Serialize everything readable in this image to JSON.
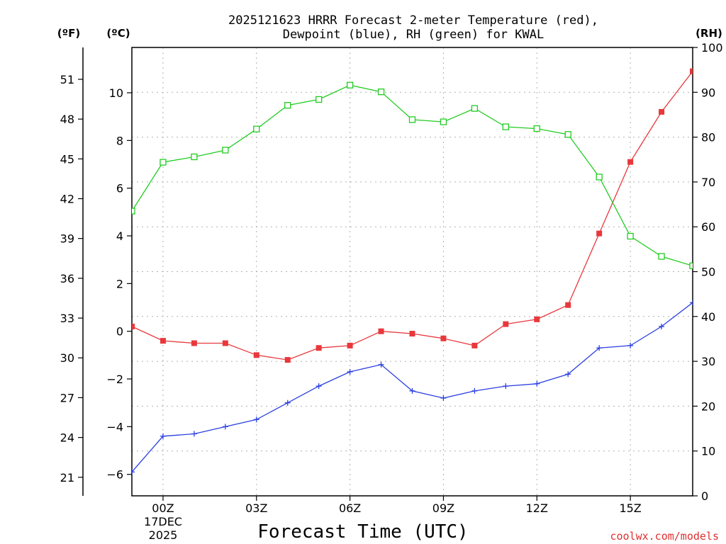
{
  "chart_data": {
    "type": "line",
    "title_line1": "2025121623 HRRR Forecast 2-meter Temperature (red),",
    "title_line2": "Dewpoint (blue), RH (green) for KWAL",
    "xlabel": "Forecast Time (UTC)",
    "ylabel_left_f": "(ºF)",
    "ylabel_left_c": "(ºC)",
    "ylabel_right": "(RH)",
    "watermark": "coolwx.com/models",
    "date_label_day": "17DEC",
    "date_label_year": "2025",
    "x_range_hours": [
      -1,
      17
    ],
    "celsius_range": [
      -6.9,
      11.9
    ],
    "fahrenheit_range": [
      19.6,
      53.4
    ],
    "rh_range": [
      0,
      100
    ],
    "x_hours": [
      -1,
      0,
      1,
      2,
      3,
      4,
      5,
      6,
      7,
      8,
      9,
      10,
      11,
      12,
      13,
      14,
      15,
      16,
      17
    ],
    "x_ticks": [
      {
        "hour": 0,
        "label": "00Z"
      },
      {
        "hour": 3,
        "label": "03Z"
      },
      {
        "hour": 6,
        "label": "06Z"
      },
      {
        "hour": 9,
        "label": "09Z"
      },
      {
        "hour": 12,
        "label": "12Z"
      },
      {
        "hour": 15,
        "label": "15Z"
      }
    ],
    "celsius_ticks": [
      -6,
      -4,
      -2,
      0,
      2,
      4,
      6,
      8,
      10
    ],
    "celsius_tick_labels": [
      "−6",
      "−4",
      "−2",
      "0",
      "2",
      "4",
      "6",
      "8",
      "10"
    ],
    "fahrenheit_ticks": [
      21,
      24,
      27,
      30,
      33,
      36,
      39,
      42,
      45,
      48,
      51
    ],
    "fahrenheit_tick_labels": [
      "21",
      "24",
      "27",
      "30",
      "33",
      "36",
      "39",
      "42",
      "45",
      "48",
      "51"
    ],
    "rh_ticks": [
      0,
      10,
      20,
      30,
      40,
      50,
      60,
      70,
      80,
      90,
      100
    ],
    "rh_tick_labels": [
      "0",
      "10",
      "20",
      "30",
      "40",
      "50",
      "60",
      "70",
      "80",
      "90",
      "100"
    ],
    "series": [
      {
        "name": "Temperature",
        "axis": "celsius",
        "color": "#e8383c",
        "marker": "filled-square",
        "values": [
          0.2,
          -0.4,
          -0.5,
          -0.5,
          -1.0,
          -1.2,
          -0.7,
          -0.6,
          0.0,
          -0.1,
          -0.3,
          -0.6,
          0.3,
          0.5,
          1.1,
          4.1,
          7.1,
          9.2,
          10.9
        ]
      },
      {
        "name": "Dewpoint",
        "axis": "celsius",
        "color": "#2b3fe0",
        "marker": "plus",
        "values": [
          -5.9,
          -4.4,
          -4.3,
          -4.0,
          -3.7,
          -3.0,
          -2.3,
          -1.7,
          -1.4,
          -2.5,
          -2.8,
          -2.5,
          -2.3,
          -2.2,
          -1.8,
          -0.7,
          -0.6,
          0.2,
          1.2
        ]
      },
      {
        "name": "RH",
        "axis": "rh",
        "color": "#22cc22",
        "marker": "open-square",
        "values": [
          63.5,
          74.4,
          75.6,
          77.1,
          81.8,
          87.1,
          88.4,
          91.6,
          90.1,
          83.9,
          83.4,
          86.4,
          82.3,
          81.9,
          80.6,
          71.1,
          57.9,
          53.4,
          51.3
        ]
      }
    ]
  }
}
